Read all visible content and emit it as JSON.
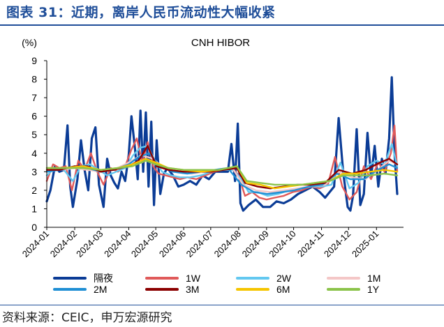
{
  "heading": "图表 31：近期，离岸人民币流动性大幅收紧",
  "source": "资料来源：CEIC，申万宏源研究",
  "colors": {
    "heading": "#1f4e99",
    "axis": "#000000"
  },
  "chart_data": {
    "type": "line",
    "title": "CNH HIBOR",
    "ylabel": "(%)",
    "xlabel": "",
    "ylim": [
      0,
      9
    ],
    "yticks": [
      0,
      1,
      2,
      3,
      4,
      5,
      6,
      7,
      8,
      9
    ],
    "xlim": [
      "2024-01-01",
      "2025-01-31"
    ],
    "xticks": [
      "2024-01",
      "2024-02",
      "2024-03",
      "2024-04",
      "2024-05",
      "2024-06",
      "2024-07",
      "2024-08",
      "2024-09",
      "2024-10",
      "2024-11",
      "2024-12",
      "2025-01"
    ],
    "grid": false,
    "legend_position": "bottom",
    "series": [
      {
        "name": "隔夜",
        "color": "#0b3c96",
        "width": 3.2,
        "x": [
          "2024-01-01",
          "2024-01-05",
          "2024-01-10",
          "2024-01-15",
          "2024-01-20",
          "2024-01-24",
          "2024-01-27",
          "2024-01-30",
          "2024-02-04",
          "2024-02-08",
          "2024-02-12",
          "2024-02-16",
          "2024-02-20",
          "2024-02-24",
          "2024-02-28",
          "2024-03-04",
          "2024-03-08",
          "2024-03-12",
          "2024-03-16",
          "2024-03-20",
          "2024-03-24",
          "2024-03-28",
          "2024-04-01",
          "2024-04-04",
          "2024-04-08",
          "2024-04-11",
          "2024-04-14",
          "2024-04-17",
          "2024-04-20",
          "2024-04-23",
          "2024-04-26",
          "2024-04-29",
          "2024-05-02",
          "2024-05-06",
          "2024-05-10",
          "2024-05-14",
          "2024-05-20",
          "2024-05-26",
          "2024-06-01",
          "2024-06-08",
          "2024-06-15",
          "2024-06-22",
          "2024-06-29",
          "2024-07-06",
          "2024-07-13",
          "2024-07-20",
          "2024-07-24",
          "2024-07-28",
          "2024-07-31",
          "2024-08-03",
          "2024-08-06",
          "2024-08-12",
          "2024-08-20",
          "2024-08-28",
          "2024-09-05",
          "2024-09-12",
          "2024-09-20",
          "2024-09-28",
          "2024-10-06",
          "2024-10-14",
          "2024-10-22",
          "2024-10-30",
          "2024-11-05",
          "2024-11-10",
          "2024-11-15",
          "2024-11-20",
          "2024-11-25",
          "2024-11-30",
          "2024-12-03",
          "2024-12-06",
          "2024-12-10",
          "2024-12-14",
          "2024-12-18",
          "2024-12-22",
          "2024-12-26",
          "2024-12-30",
          "2025-01-03",
          "2025-01-07",
          "2025-01-11",
          "2025-01-15",
          "2025-01-18",
          "2025-01-21",
          "2025-01-24"
        ],
        "y": [
          1.4,
          2.0,
          3.3,
          3.0,
          3.1,
          5.5,
          2.2,
          1.1,
          2.6,
          4.7,
          3.1,
          2.0,
          4.8,
          5.4,
          2.3,
          1.1,
          3.7,
          2.8,
          2.4,
          2.1,
          3.0,
          2.5,
          3.9,
          6.0,
          4.2,
          2.6,
          6.3,
          3.0,
          6.2,
          2.2,
          5.7,
          1.2,
          4.7,
          1.8,
          2.9,
          3.2,
          2.8,
          2.2,
          2.3,
          2.5,
          2.3,
          2.8,
          2.6,
          3.0,
          3.0,
          3.0,
          4.5,
          2.5,
          5.6,
          1.3,
          0.9,
          1.2,
          1.5,
          1.1,
          1.1,
          1.4,
          1.3,
          1.5,
          1.8,
          2.0,
          2.2,
          1.9,
          1.6,
          1.9,
          2.2,
          5.9,
          3.0,
          1.1,
          0.9,
          1.7,
          5.3,
          1.2,
          1.8,
          5.1,
          2.7,
          4.4,
          2.2,
          3.7,
          2.9,
          4.8,
          8.1,
          4.0,
          1.8
        ]
      },
      {
        "name": "1W",
        "color": "#e05a5a",
        "width": 2.4,
        "x": [
          "2024-01-01",
          "2024-01-08",
          "2024-01-15",
          "2024-01-22",
          "2024-01-29",
          "2024-02-05",
          "2024-02-12",
          "2024-02-19",
          "2024-02-26",
          "2024-03-04",
          "2024-03-12",
          "2024-03-20",
          "2024-03-28",
          "2024-04-04",
          "2024-04-10",
          "2024-04-16",
          "2024-04-22",
          "2024-04-28",
          "2024-05-04",
          "2024-05-12",
          "2024-05-20",
          "2024-05-28",
          "2024-06-05",
          "2024-06-15",
          "2024-06-25",
          "2024-07-05",
          "2024-07-15",
          "2024-07-25",
          "2024-08-01",
          "2024-08-08",
          "2024-08-16",
          "2024-08-24",
          "2024-09-01",
          "2024-09-10",
          "2024-09-20",
          "2024-09-30",
          "2024-10-10",
          "2024-10-20",
          "2024-10-30",
          "2024-11-08",
          "2024-11-16",
          "2024-11-24",
          "2024-12-02",
          "2024-12-10",
          "2024-12-18",
          "2024-12-26",
          "2025-01-03",
          "2025-01-10",
          "2025-01-17",
          "2025-01-21",
          "2025-01-24"
        ],
        "y": [
          2.5,
          3.4,
          3.2,
          3.3,
          2.0,
          3.6,
          3.1,
          4.0,
          3.0,
          2.3,
          3.2,
          3.0,
          3.3,
          4.2,
          4.8,
          3.5,
          4.6,
          3.3,
          2.9,
          2.8,
          2.7,
          2.6,
          2.7,
          2.6,
          2.8,
          3.0,
          3.1,
          3.2,
          2.8,
          1.7,
          1.9,
          1.6,
          1.5,
          1.6,
          1.7,
          1.9,
          2.0,
          2.2,
          2.1,
          2.3,
          3.8,
          2.2,
          1.5,
          1.9,
          3.3,
          2.6,
          3.5,
          3.0,
          4.0,
          5.5,
          3.0
        ]
      },
      {
        "name": "2W",
        "color": "#63c8f0",
        "width": 2.4,
        "x": [
          "2024-01-01",
          "2024-01-10",
          "2024-01-20",
          "2024-01-30",
          "2024-02-08",
          "2024-02-18",
          "2024-02-28",
          "2024-03-08",
          "2024-03-18",
          "2024-03-28",
          "2024-04-06",
          "2024-04-14",
          "2024-04-22",
          "2024-04-30",
          "2024-05-08",
          "2024-05-18",
          "2024-05-28",
          "2024-06-08",
          "2024-06-20",
          "2024-07-02",
          "2024-07-14",
          "2024-07-26",
          "2024-08-04",
          "2024-08-12",
          "2024-08-22",
          "2024-09-02",
          "2024-09-14",
          "2024-09-26",
          "2024-10-08",
          "2024-10-20",
          "2024-11-01",
          "2024-11-12",
          "2024-11-22",
          "2024-12-02",
          "2024-12-12",
          "2024-12-22",
          "2025-01-01",
          "2025-01-10",
          "2025-01-18",
          "2025-01-24"
        ],
        "y": [
          2.8,
          3.2,
          3.1,
          2.5,
          3.3,
          3.4,
          3.1,
          2.8,
          3.0,
          3.2,
          3.9,
          4.3,
          4.4,
          3.6,
          3.0,
          2.8,
          2.7,
          2.7,
          2.8,
          3.0,
          3.1,
          3.1,
          2.6,
          1.9,
          1.9,
          1.7,
          1.8,
          2.0,
          2.1,
          2.2,
          2.2,
          2.3,
          3.5,
          2.1,
          2.4,
          3.3,
          3.6,
          3.4,
          4.5,
          3.3
        ]
      },
      {
        "name": "1M",
        "color": "#f4c7c7",
        "width": 2.4,
        "x": [
          "2024-01-01",
          "2024-01-15",
          "2024-02-01",
          "2024-02-15",
          "2024-03-01",
          "2024-03-15",
          "2024-04-01",
          "2024-04-15",
          "2024-04-28",
          "2024-05-10",
          "2024-05-25",
          "2024-06-10",
          "2024-06-25",
          "2024-07-10",
          "2024-07-25",
          "2024-08-06",
          "2024-08-20",
          "2024-09-05",
          "2024-09-20",
          "2024-10-05",
          "2024-10-20",
          "2024-11-05",
          "2024-11-20",
          "2024-12-05",
          "2024-12-20",
          "2025-01-05",
          "2025-01-15",
          "2025-01-24"
        ],
        "y": [
          3.0,
          3.1,
          3.2,
          3.1,
          3.0,
          3.1,
          3.5,
          3.9,
          3.7,
          3.2,
          3.0,
          2.9,
          3.0,
          3.1,
          3.2,
          2.3,
          2.0,
          1.9,
          2.0,
          2.1,
          2.2,
          2.3,
          3.0,
          2.7,
          2.6,
          3.2,
          3.6,
          3.4
        ]
      },
      {
        "name": "2M",
        "color": "#1f8fd4",
        "width": 2.4,
        "x": [
          "2024-01-01",
          "2024-01-15",
          "2024-02-01",
          "2024-02-15",
          "2024-03-01",
          "2024-03-15",
          "2024-04-01",
          "2024-04-12",
          "2024-04-24",
          "2024-05-05",
          "2024-05-20",
          "2024-06-05",
          "2024-06-20",
          "2024-07-05",
          "2024-07-20",
          "2024-08-04",
          "2024-08-18",
          "2024-09-02",
          "2024-09-18",
          "2024-10-02",
          "2024-10-18",
          "2024-11-02",
          "2024-11-18",
          "2024-12-03",
          "2024-12-18",
          "2025-01-02",
          "2025-01-15",
          "2025-01-24"
        ],
        "y": [
          3.0,
          3.1,
          3.3,
          3.2,
          3.0,
          3.1,
          3.4,
          3.8,
          4.0,
          3.3,
          3.0,
          2.9,
          3.0,
          3.1,
          3.2,
          2.3,
          1.9,
          1.8,
          1.9,
          2.0,
          2.2,
          2.3,
          2.9,
          2.6,
          2.6,
          3.1,
          3.4,
          3.2
        ]
      },
      {
        "name": "3M",
        "color": "#8b0000",
        "width": 2.4,
        "x": [
          "2024-01-01",
          "2024-01-15",
          "2024-02-01",
          "2024-02-15",
          "2024-03-01",
          "2024-03-15",
          "2024-04-01",
          "2024-04-12",
          "2024-04-22",
          "2024-05-02",
          "2024-05-15",
          "2024-06-01",
          "2024-06-15",
          "2024-07-01",
          "2024-07-15",
          "2024-07-30",
          "2024-08-08",
          "2024-08-22",
          "2024-09-05",
          "2024-09-20",
          "2024-10-05",
          "2024-10-20",
          "2024-11-05",
          "2024-11-20",
          "2024-12-05",
          "2024-12-20",
          "2025-01-05",
          "2025-01-15",
          "2025-01-24"
        ],
        "y": [
          3.1,
          3.1,
          3.3,
          3.3,
          3.0,
          3.1,
          3.3,
          3.6,
          4.4,
          3.3,
          3.1,
          3.0,
          3.0,
          3.0,
          3.1,
          3.2,
          2.4,
          2.2,
          2.1,
          2.2,
          2.3,
          2.3,
          2.4,
          3.1,
          2.9,
          3.1,
          3.5,
          3.7,
          3.4
        ]
      },
      {
        "name": "6M",
        "color": "#f5c500",
        "width": 2.4,
        "x": [
          "2024-01-01",
          "2024-01-20",
          "2024-02-10",
          "2024-03-01",
          "2024-03-20",
          "2024-04-05",
          "2024-04-20",
          "2024-05-01",
          "2024-05-15",
          "2024-06-01",
          "2024-06-20",
          "2024-07-10",
          "2024-07-30",
          "2024-08-10",
          "2024-08-25",
          "2024-09-10",
          "2024-09-25",
          "2024-10-10",
          "2024-10-25",
          "2024-11-10",
          "2024-11-25",
          "2024-12-10",
          "2024-12-25",
          "2025-01-10",
          "2025-01-24"
        ],
        "y": [
          3.2,
          3.2,
          3.3,
          3.1,
          3.2,
          3.4,
          3.7,
          3.5,
          3.2,
          3.1,
          3.0,
          3.1,
          3.3,
          2.4,
          2.3,
          2.1,
          2.2,
          2.3,
          2.4,
          2.5,
          2.9,
          2.9,
          3.0,
          3.1,
          3.0
        ]
      },
      {
        "name": "1Y",
        "color": "#8bc34a",
        "width": 2.4,
        "x": [
          "2024-01-01",
          "2024-01-20",
          "2024-02-10",
          "2024-03-01",
          "2024-03-20",
          "2024-04-05",
          "2024-04-20",
          "2024-05-01",
          "2024-05-15",
          "2024-06-01",
          "2024-06-20",
          "2024-07-10",
          "2024-07-30",
          "2024-08-10",
          "2024-08-25",
          "2024-09-10",
          "2024-09-25",
          "2024-10-10",
          "2024-10-25",
          "2024-11-10",
          "2024-11-25",
          "2024-12-10",
          "2024-12-25",
          "2025-01-10",
          "2025-01-24"
        ],
        "y": [
          3.2,
          3.2,
          3.2,
          3.1,
          3.2,
          3.3,
          3.6,
          3.4,
          3.2,
          3.1,
          3.1,
          3.1,
          3.3,
          2.5,
          2.4,
          2.3,
          2.3,
          2.3,
          2.4,
          2.5,
          2.8,
          2.8,
          2.8,
          2.9,
          2.8
        ]
      }
    ]
  }
}
